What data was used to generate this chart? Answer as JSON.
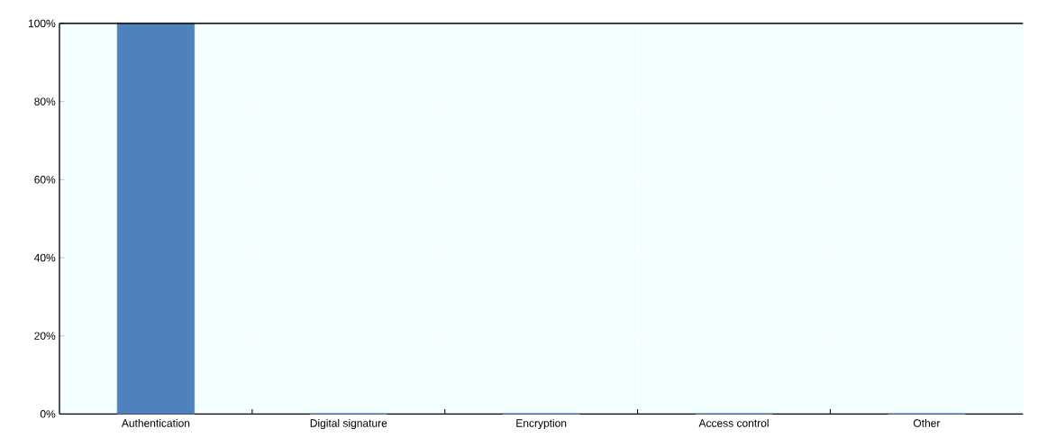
{
  "chart_data": {
    "type": "bar",
    "categories": [
      "Authentication",
      "Digital signature",
      "Encryption",
      "Access control",
      "Other"
    ],
    "values": [
      100,
      0,
      0,
      0,
      0
    ],
    "color": "#4f81bd",
    "ylim": [
      0,
      100
    ],
    "yticks": [
      {
        "value": 0,
        "label": "0%"
      },
      {
        "value": 20,
        "label": "20%"
      },
      {
        "value": 40,
        "label": "40%"
      },
      {
        "value": 60,
        "label": "60%"
      },
      {
        "value": 80,
        "label": "80%"
      },
      {
        "value": 100,
        "label": "100%"
      }
    ],
    "grid": true
  }
}
